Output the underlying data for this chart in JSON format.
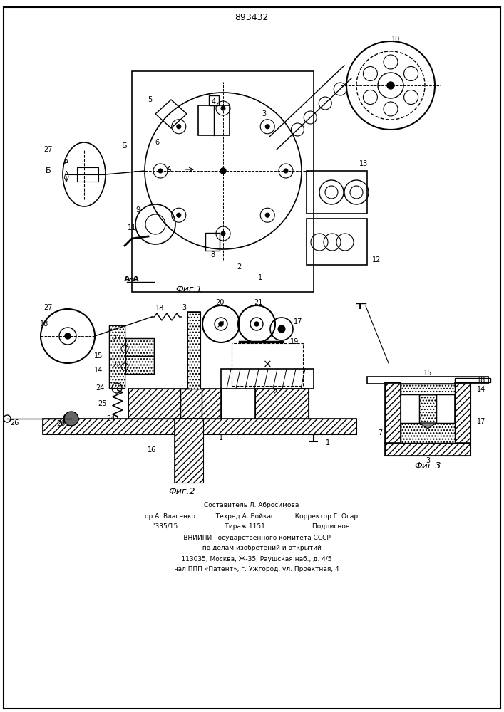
{
  "patent_number": "893432",
  "background_color": "#ffffff",
  "line_color": "#000000",
  "fig1_label": "Фиг.1",
  "fig2_label": "Фиг.2",
  "fig3_label": "Фиг.3",
  "section_label": "А-А",
  "footer_lines": [
    "Составитель Л. Абросимова",
    "ор А. Власенко          Техред А. Бойкас          Корректор Г. Огар",
    "'335/15                       Тираж 1151                       Подписное",
    "     ВНИИПИ Государственного комитета СССР",
    "          по делам изобретений и открытий",
    "     113035, Москва, Ж-35, Раушская наб., д. 4/5",
    "     чал ППП «Патент», г. Ужгород, ул. Проектная, 4"
  ]
}
